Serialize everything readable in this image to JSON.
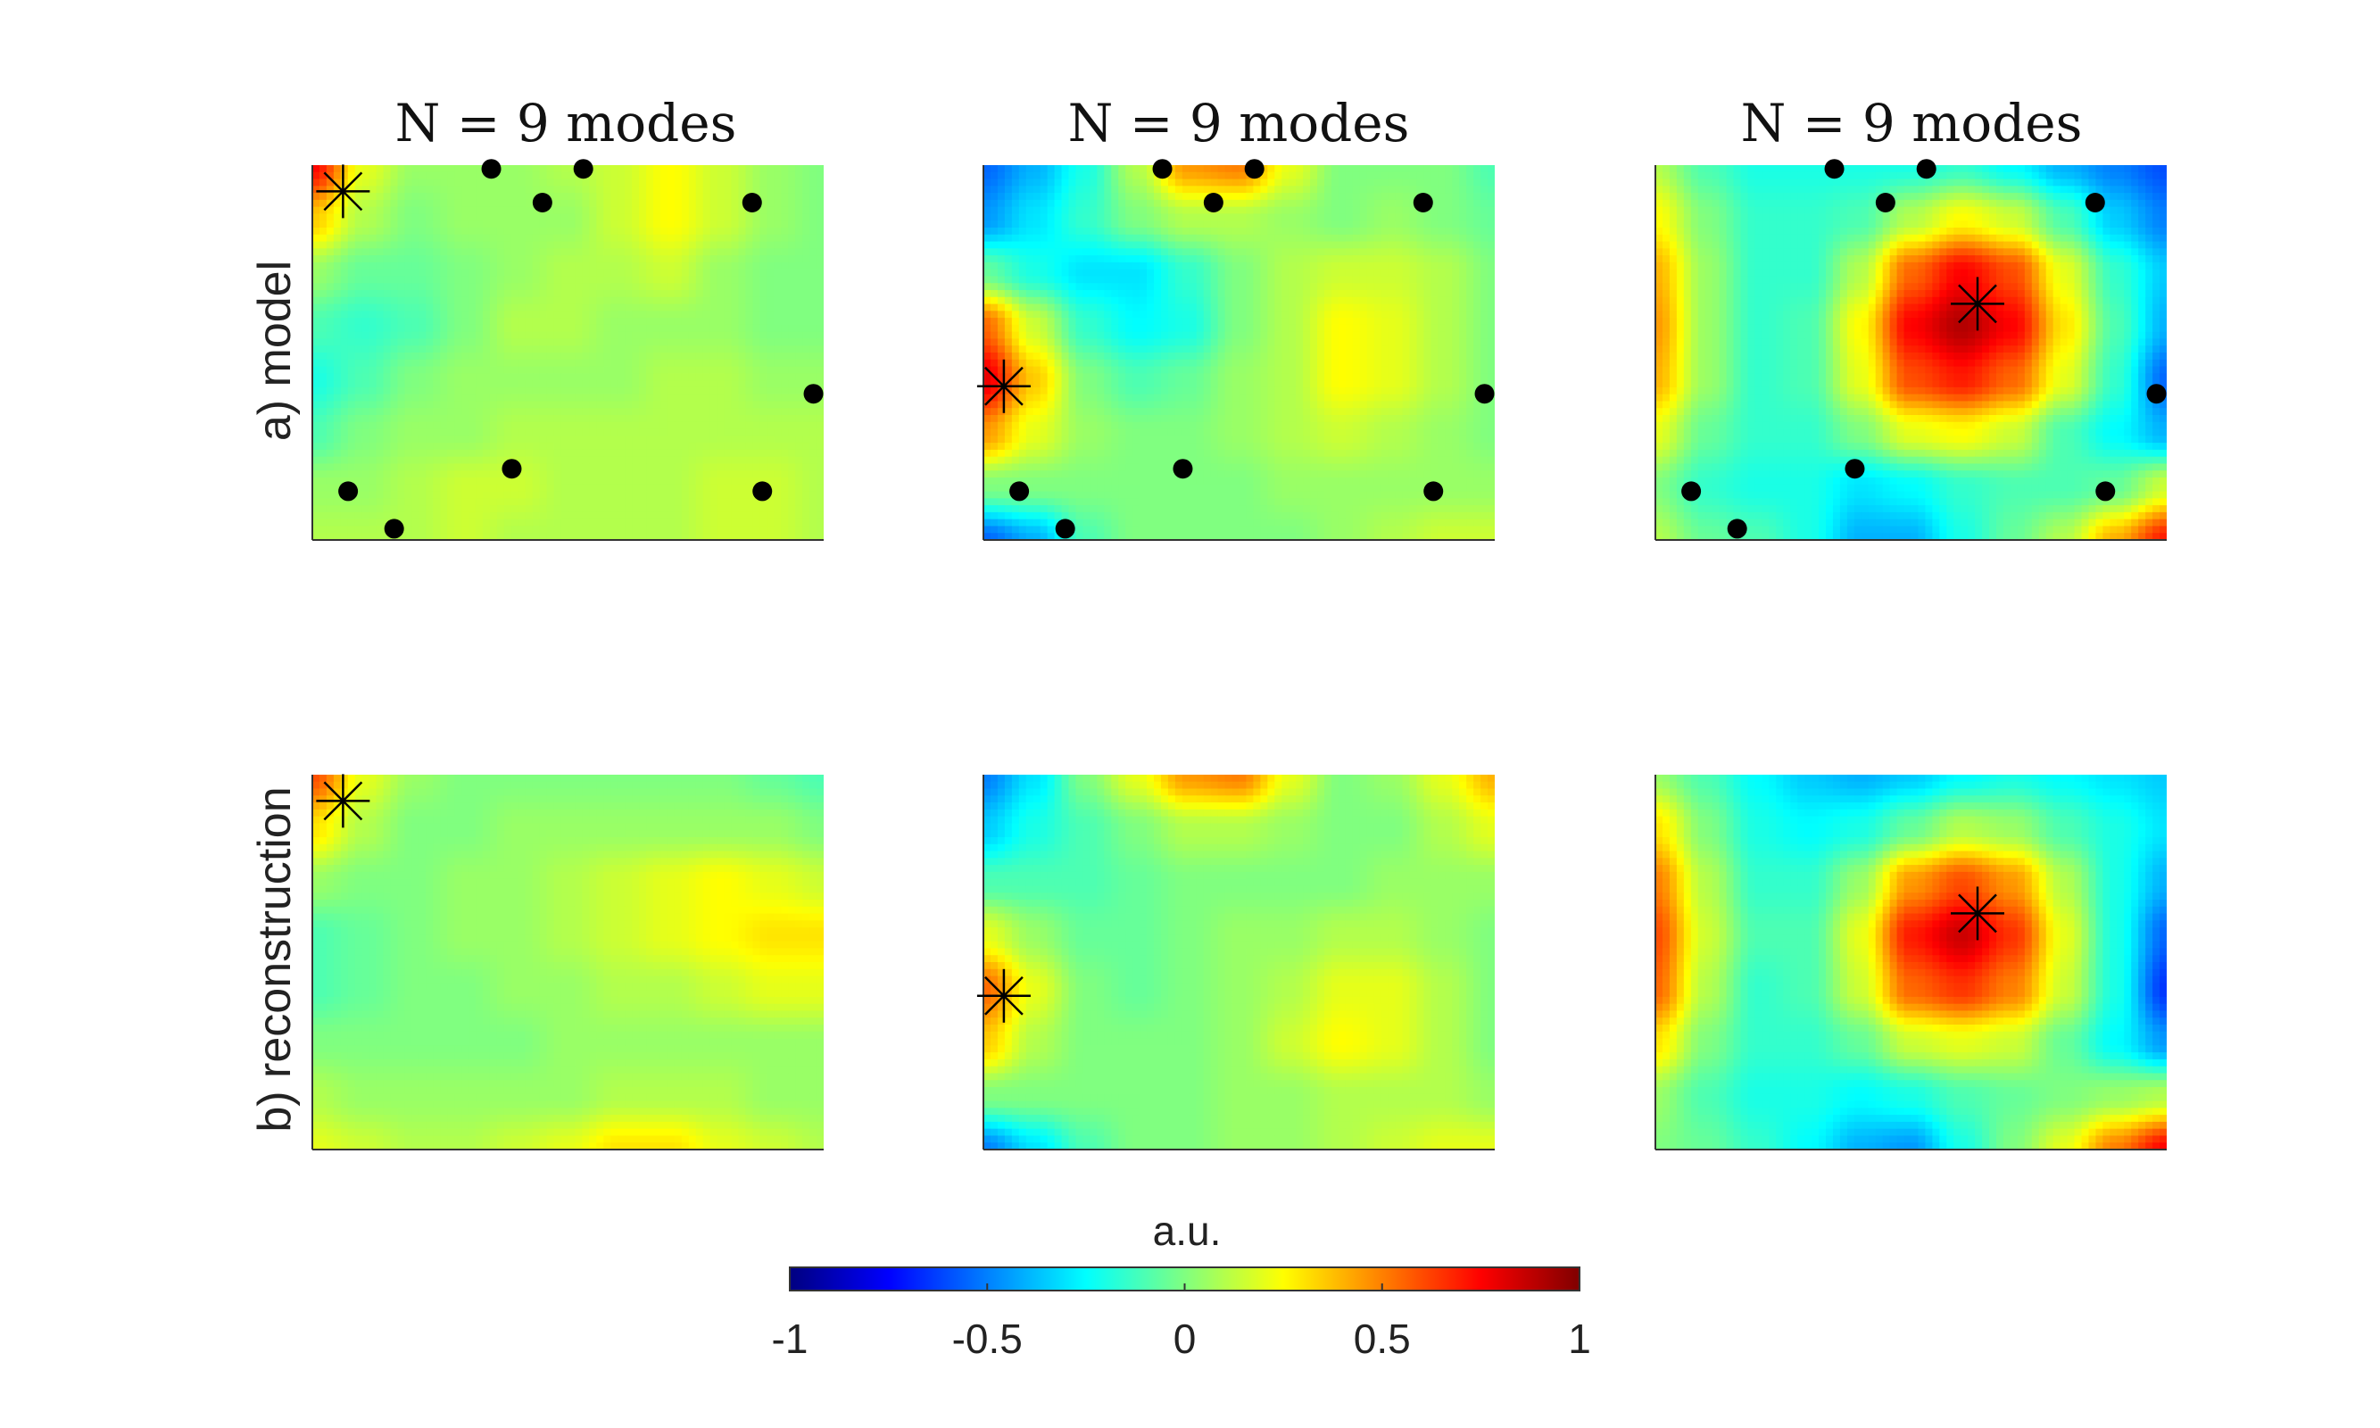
{
  "chart_data": {
    "type": "heatmap",
    "colormap": "jet",
    "clim": [
      -1,
      1
    ],
    "colorbar": {
      "label": "a.u.",
      "ticks": [
        -1,
        -0.5,
        0,
        0.5,
        1
      ],
      "tick_labels": [
        "-1",
        "-0.5",
        "0",
        "0.5",
        "1"
      ],
      "placement": "bottom"
    },
    "row_labels": [
      "a) model",
      "b) reconstruction"
    ],
    "column_titles": [
      "N = 9 modes",
      "N = 9 modes",
      "N = 9 modes"
    ],
    "panels": [
      {
        "row": 0,
        "col": 0,
        "sensors": [
          [
            0.35,
            0.01
          ],
          [
            0.45,
            0.1
          ],
          [
            0.53,
            0.01
          ],
          [
            0.86,
            0.1
          ],
          [
            0.98,
            0.61
          ],
          [
            0.07,
            0.87
          ],
          [
            0.16,
            0.97
          ],
          [
            0.39,
            0.81
          ],
          [
            0.88,
            0.87
          ]
        ],
        "source": [
          0.06,
          0.07
        ],
        "field": [
          [
            0.75,
            0.2,
            0.05,
            0.05,
            0.05,
            0.1,
            0.15,
            0.25,
            0.15,
            0.05,
            0.0
          ],
          [
            0.35,
            0.1,
            0.0,
            0.05,
            0.05,
            0.05,
            0.15,
            0.25,
            0.15,
            0.05,
            0.0
          ],
          [
            0.05,
            -0.05,
            -0.05,
            0.0,
            0.05,
            0.1,
            0.1,
            0.15,
            0.05,
            0.0,
            0.0
          ],
          [
            -0.1,
            -0.15,
            -0.1,
            0.0,
            0.1,
            0.1,
            0.05,
            0.05,
            0.05,
            0.0,
            0.0
          ],
          [
            -0.2,
            -0.1,
            0.0,
            0.05,
            0.05,
            0.05,
            0.05,
            0.1,
            0.1,
            0.05,
            0.05
          ],
          [
            -0.1,
            0.0,
            0.05,
            0.05,
            0.1,
            0.1,
            0.1,
            0.1,
            0.1,
            0.1,
            0.1
          ],
          [
            0.05,
            0.05,
            0.1,
            0.15,
            0.15,
            0.1,
            0.1,
            0.1,
            0.15,
            0.15,
            0.1
          ],
          [
            0.1,
            0.1,
            0.1,
            0.15,
            0.1,
            0.1,
            0.1,
            0.1,
            0.15,
            0.15,
            0.1
          ]
        ]
      },
      {
        "row": 0,
        "col": 1,
        "sensors": [
          [
            0.35,
            0.01
          ],
          [
            0.45,
            0.1
          ],
          [
            0.53,
            0.01
          ],
          [
            0.86,
            0.1
          ],
          [
            0.98,
            0.61
          ],
          [
            0.07,
            0.87
          ],
          [
            0.16,
            0.97
          ],
          [
            0.39,
            0.81
          ],
          [
            0.88,
            0.87
          ]
        ],
        "source": [
          0.04,
          0.59
        ],
        "field": [
          [
            -0.55,
            -0.4,
            -0.2,
            0.1,
            0.45,
            0.5,
            0.2,
            0.0,
            0.0,
            0.0,
            -0.1
          ],
          [
            -0.45,
            -0.3,
            -0.15,
            0.0,
            0.1,
            0.1,
            0.05,
            0.0,
            0.05,
            0.0,
            -0.05
          ],
          [
            -0.05,
            -0.2,
            -0.3,
            -0.3,
            -0.15,
            0.0,
            0.1,
            0.15,
            0.15,
            0.1,
            0.0
          ],
          [
            0.55,
            0.15,
            -0.15,
            -0.25,
            -0.2,
            0.0,
            0.1,
            0.25,
            0.2,
            0.1,
            0.0
          ],
          [
            0.8,
            0.35,
            0.0,
            -0.1,
            -0.05,
            0.05,
            0.1,
            0.25,
            0.2,
            0.1,
            0.0
          ],
          [
            0.45,
            0.2,
            0.05,
            0.0,
            0.0,
            0.05,
            0.1,
            0.15,
            0.1,
            0.05,
            0.0
          ],
          [
            0.0,
            0.0,
            0.0,
            0.0,
            0.0,
            0.0,
            0.05,
            0.05,
            0.05,
            0.05,
            0.05
          ],
          [
            -0.55,
            -0.4,
            -0.1,
            0.0,
            0.0,
            0.0,
            0.0,
            0.05,
            0.1,
            0.15,
            0.15
          ]
        ]
      },
      {
        "row": 0,
        "col": 2,
        "sensors": [
          [
            0.35,
            0.01
          ],
          [
            0.45,
            0.1
          ],
          [
            0.53,
            0.01
          ],
          [
            0.86,
            0.1
          ],
          [
            0.98,
            0.61
          ],
          [
            0.07,
            0.87
          ],
          [
            0.16,
            0.97
          ],
          [
            0.39,
            0.81
          ],
          [
            0.88,
            0.87
          ]
        ],
        "source": [
          0.63,
          0.37
        ],
        "field": [
          [
            0.1,
            -0.1,
            -0.2,
            -0.2,
            -0.2,
            -0.2,
            -0.15,
            -0.25,
            -0.4,
            -0.5,
            -0.6
          ],
          [
            0.25,
            0.0,
            -0.15,
            -0.15,
            -0.1,
            0.1,
            0.25,
            0.15,
            -0.1,
            -0.35,
            -0.5
          ],
          [
            0.4,
            0.05,
            -0.15,
            -0.15,
            0.1,
            0.55,
            0.75,
            0.6,
            0.2,
            -0.15,
            -0.35
          ],
          [
            0.45,
            0.05,
            -0.15,
            -0.1,
            0.25,
            0.75,
            0.9,
            0.75,
            0.3,
            -0.1,
            -0.4
          ],
          [
            0.4,
            0.05,
            -0.15,
            -0.1,
            0.2,
            0.6,
            0.7,
            0.55,
            0.2,
            -0.15,
            -0.55
          ],
          [
            0.2,
            -0.05,
            -0.15,
            -0.15,
            0.0,
            0.2,
            0.25,
            0.15,
            -0.1,
            -0.25,
            -0.4
          ],
          [
            0.0,
            -0.15,
            -0.2,
            -0.2,
            -0.3,
            -0.25,
            -0.15,
            -0.1,
            -0.1,
            -0.05,
            0.15
          ],
          [
            0.1,
            -0.05,
            -0.1,
            -0.2,
            -0.4,
            -0.4,
            -0.2,
            -0.05,
            0.1,
            0.4,
            0.7
          ]
        ]
      },
      {
        "row": 1,
        "col": 0,
        "sensors": [],
        "source": [
          0.06,
          0.07
        ],
        "field": [
          [
            0.6,
            0.2,
            0.05,
            0.0,
            0.0,
            0.0,
            0.0,
            0.0,
            0.0,
            -0.05,
            -0.1
          ],
          [
            0.3,
            0.1,
            0.0,
            0.0,
            0.05,
            0.05,
            0.05,
            0.05,
            0.05,
            0.05,
            0.0
          ],
          [
            0.05,
            0.0,
            0.0,
            0.05,
            0.05,
            0.1,
            0.15,
            0.2,
            0.25,
            0.2,
            0.15
          ],
          [
            -0.1,
            -0.05,
            0.0,
            0.05,
            0.05,
            0.1,
            0.15,
            0.2,
            0.25,
            0.3,
            0.3
          ],
          [
            -0.1,
            -0.05,
            0.0,
            0.0,
            0.05,
            0.05,
            0.1,
            0.1,
            0.15,
            0.2,
            0.2
          ],
          [
            0.0,
            0.0,
            0.0,
            0.0,
            0.0,
            0.05,
            0.05,
            0.05,
            0.05,
            0.05,
            0.05
          ],
          [
            0.1,
            0.05,
            0.05,
            0.05,
            0.05,
            0.05,
            0.1,
            0.1,
            0.1,
            0.05,
            0.05
          ],
          [
            0.2,
            0.15,
            0.1,
            0.1,
            0.15,
            0.2,
            0.3,
            0.3,
            0.2,
            0.15,
            0.1
          ]
        ]
      },
      {
        "row": 1,
        "col": 1,
        "sensors": [],
        "source": [
          0.04,
          0.59
        ],
        "field": [
          [
            -0.5,
            -0.3,
            0.0,
            0.2,
            0.45,
            0.5,
            0.2,
            0.0,
            0.05,
            0.2,
            0.4
          ],
          [
            -0.35,
            -0.2,
            -0.1,
            0.0,
            0.1,
            0.1,
            0.05,
            0.0,
            0.0,
            0.1,
            0.2
          ],
          [
            -0.1,
            -0.1,
            -0.1,
            -0.05,
            0.0,
            0.0,
            0.0,
            0.0,
            0.05,
            0.05,
            0.05
          ],
          [
            0.2,
            0.05,
            -0.05,
            -0.05,
            0.0,
            0.05,
            0.05,
            0.1,
            0.1,
            0.05,
            0.0
          ],
          [
            0.55,
            0.2,
            0.0,
            -0.05,
            0.0,
            0.05,
            0.1,
            0.2,
            0.2,
            0.1,
            0.0
          ],
          [
            0.35,
            0.1,
            0.0,
            0.0,
            0.0,
            0.05,
            0.15,
            0.25,
            0.2,
            0.1,
            0.0
          ],
          [
            0.0,
            0.0,
            0.0,
            0.0,
            0.0,
            0.05,
            0.05,
            0.1,
            0.1,
            0.1,
            0.05
          ],
          [
            -0.5,
            -0.3,
            -0.1,
            0.0,
            0.0,
            0.05,
            0.05,
            0.1,
            0.15,
            0.2,
            0.2
          ]
        ]
      },
      {
        "row": 1,
        "col": 2,
        "sensors": [],
        "source": [
          0.63,
          0.37
        ],
        "field": [
          [
            0.05,
            -0.1,
            -0.25,
            -0.35,
            -0.4,
            -0.35,
            -0.25,
            -0.2,
            -0.25,
            -0.3,
            -0.35
          ],
          [
            0.3,
            0.0,
            -0.2,
            -0.25,
            -0.2,
            -0.05,
            0.1,
            0.05,
            -0.1,
            -0.2,
            -0.3
          ],
          [
            0.5,
            0.1,
            -0.15,
            -0.15,
            0.05,
            0.45,
            0.6,
            0.45,
            0.1,
            -0.2,
            -0.4
          ],
          [
            0.6,
            0.15,
            -0.1,
            -0.1,
            0.2,
            0.7,
            0.85,
            0.65,
            0.2,
            -0.2,
            -0.55
          ],
          [
            0.55,
            0.1,
            -0.15,
            -0.1,
            0.15,
            0.55,
            0.65,
            0.5,
            0.15,
            -0.2,
            -0.65
          ],
          [
            0.3,
            0.0,
            -0.15,
            -0.15,
            -0.05,
            0.15,
            0.2,
            0.15,
            -0.05,
            -0.25,
            -0.45
          ],
          [
            0.05,
            -0.1,
            -0.2,
            -0.2,
            -0.25,
            -0.2,
            -0.1,
            -0.05,
            0.0,
            0.05,
            0.1
          ],
          [
            0.0,
            -0.05,
            -0.15,
            -0.25,
            -0.4,
            -0.45,
            -0.2,
            0.0,
            0.2,
            0.5,
            0.75
          ]
        ]
      }
    ]
  }
}
